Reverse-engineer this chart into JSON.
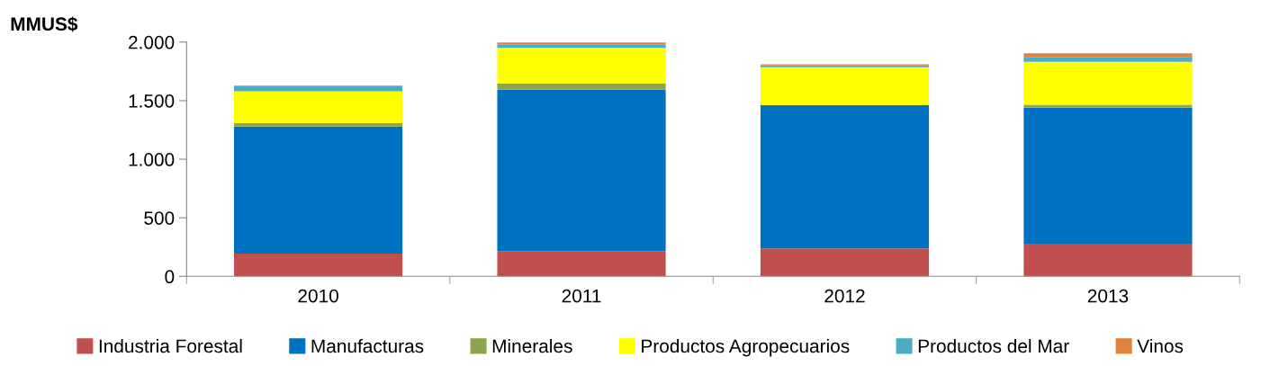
{
  "chart_data": {
    "type": "bar",
    "stacked": true,
    "ylabel": "MMUS$",
    "categories": [
      "2010",
      "2011",
      "2012",
      "2013"
    ],
    "series": [
      {
        "name": "Industria Forestal",
        "color": "#c0504d",
        "values": [
          195,
          216,
          239,
          279
        ]
      },
      {
        "name": "Manufacturas",
        "color": "#0070c0",
        "values": [
          1083,
          1378,
          1222,
          1161
        ]
      },
      {
        "name": "Minerales",
        "color": "#8ea44c",
        "values": [
          29,
          53,
          null,
          24
        ]
      },
      {
        "name": "Productos Agropecuarios",
        "color": "#ffff00",
        "values": [
          273,
          303,
          325,
          367
        ]
      },
      {
        "name": "Productos del Mar",
        "color": "#4bacc6",
        "values": [
          46,
          32,
          15,
          42
        ]
      },
      {
        "name": "Vinos",
        "color": "#e0843c",
        "values": [
          4,
          15,
          9,
          32
        ]
      }
    ],
    "ylim": [
      0,
      2000
    ],
    "yticks": [
      {
        "value": 0,
        "label": "0"
      },
      {
        "value": 500,
        "label": "500"
      },
      {
        "value": 1000,
        "label": "1.000"
      },
      {
        "value": 1500,
        "label": "1.500"
      },
      {
        "value": 2000,
        "label": "2.000"
      }
    ],
    "grid": false,
    "legend": "bottom"
  }
}
